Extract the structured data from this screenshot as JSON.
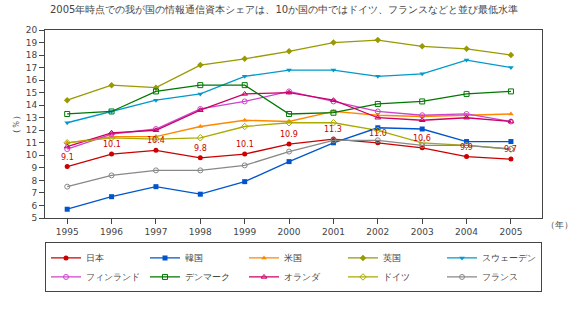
{
  "chart_data": {
    "type": "line",
    "title": "2005年時点での我が国の情報通信資本シェアは、10か国の中ではドイツ、フランスなどと並び最低水準",
    "xlabel": "（年）",
    "ylabel": "（％）",
    "x": [
      1995,
      1996,
      1997,
      1998,
      1999,
      2000,
      2001,
      2002,
      2003,
      2004,
      2005
    ],
    "series": [
      {
        "name": "日本",
        "color": "#cc0000",
        "marker": "circle",
        "values": [
          9.1,
          10.1,
          10.4,
          9.8,
          10.1,
          10.9,
          11.3,
          11.0,
          10.6,
          9.9,
          9.7
        ]
      },
      {
        "name": "韓国",
        "color": "#0055cc",
        "marker": "square",
        "values": [
          5.7,
          6.7,
          7.5,
          6.9,
          7.9,
          9.5,
          11.0,
          12.2,
          12.1,
          11.1,
          11.1
        ]
      },
      {
        "name": "米国",
        "color": "#ff8800",
        "marker": "triangle-up",
        "values": [
          11.0,
          11.5,
          11.5,
          12.3,
          12.8,
          12.7,
          13.5,
          13.2,
          13.1,
          13.2,
          13.3
        ]
      },
      {
        "name": "英国",
        "color": "#999900",
        "marker": "diamond",
        "values": [
          14.4,
          15.6,
          15.4,
          17.2,
          17.7,
          18.3,
          19.0,
          19.2,
          18.7,
          18.5,
          18.0
        ]
      },
      {
        "name": "スウェーデン",
        "color": "#0099cc",
        "marker": "triangle-down",
        "values": [
          12.6,
          13.5,
          14.4,
          14.9,
          16.3,
          16.8,
          16.8,
          16.3,
          16.5,
          17.6,
          17.0
        ]
      },
      {
        "name": "フィンランド",
        "color": "#cc44cc",
        "marker": "circle-open",
        "values": [
          10.5,
          11.7,
          12.1,
          13.7,
          14.3,
          15.1,
          14.3,
          13.5,
          13.2,
          13.3,
          12.7
        ]
      },
      {
        "name": "デンマーク",
        "color": "#007700",
        "marker": "square-open",
        "values": [
          13.3,
          13.5,
          15.1,
          15.6,
          15.6,
          13.3,
          13.4,
          14.1,
          14.3,
          14.9,
          15.1
        ]
      },
      {
        "name": "オランダ",
        "color": "#cc0066",
        "marker": "triangle-up-open",
        "values": [
          10.7,
          11.8,
          12.0,
          13.6,
          14.9,
          15.0,
          14.4,
          13.0,
          12.8,
          13.0,
          12.7
        ]
      },
      {
        "name": "ドイツ",
        "color": "#aaaa00",
        "marker": "diamond-open",
        "values": [
          11.0,
          11.4,
          11.3,
          11.4,
          12.3,
          12.6,
          12.6,
          12.0,
          11.0,
          10.8,
          10.5
        ]
      },
      {
        "name": "フランス",
        "color": "#888888",
        "marker": "circle-open",
        "values": [
          7.5,
          8.4,
          8.8,
          8.8,
          9.2,
          10.3,
          11.2,
          11.2,
          10.8,
          10.8,
          10.5
        ]
      }
    ],
    "annotations": [
      {
        "x": 1995,
        "y": 9.1,
        "text": "9.1",
        "color": "#cc0000"
      },
      {
        "x": 1996,
        "y": 10.1,
        "text": "10.1",
        "color": "#cc0000"
      },
      {
        "x": 1997,
        "y": 10.4,
        "text": "10.4",
        "color": "#cc0000"
      },
      {
        "x": 1998,
        "y": 9.8,
        "text": "9.8",
        "color": "#cc0000"
      },
      {
        "x": 1999,
        "y": 10.1,
        "text": "10.1",
        "color": "#cc0000"
      },
      {
        "x": 2000,
        "y": 10.9,
        "text": "10.9",
        "color": "#cc0000"
      },
      {
        "x": 2001,
        "y": 11.3,
        "text": "11.3",
        "color": "#cc0000"
      },
      {
        "x": 2002,
        "y": 11.0,
        "text": "11.0",
        "color": "#cc0000"
      },
      {
        "x": 2003,
        "y": 10.6,
        "text": "10.6",
        "color": "#cc0000"
      },
      {
        "x": 2004,
        "y": 9.9,
        "text": "9.9",
        "color": "#cc0000"
      },
      {
        "x": 2005,
        "y": 9.7,
        "text": "9.7",
        "color": "#cc0000"
      }
    ],
    "xlim": [
      1994.5,
      2005.7
    ],
    "xticks": [
      1995,
      1996,
      1997,
      1998,
      1999,
      2000,
      2001,
      2002,
      2003,
      2004,
      2005
    ],
    "ylim": [
      5,
      20
    ],
    "yticks": [
      5,
      6,
      7,
      8,
      9,
      10,
      11,
      12,
      13,
      14,
      15,
      16,
      17,
      18,
      19,
      20
    ],
    "grid": false,
    "legend": "bottom"
  }
}
